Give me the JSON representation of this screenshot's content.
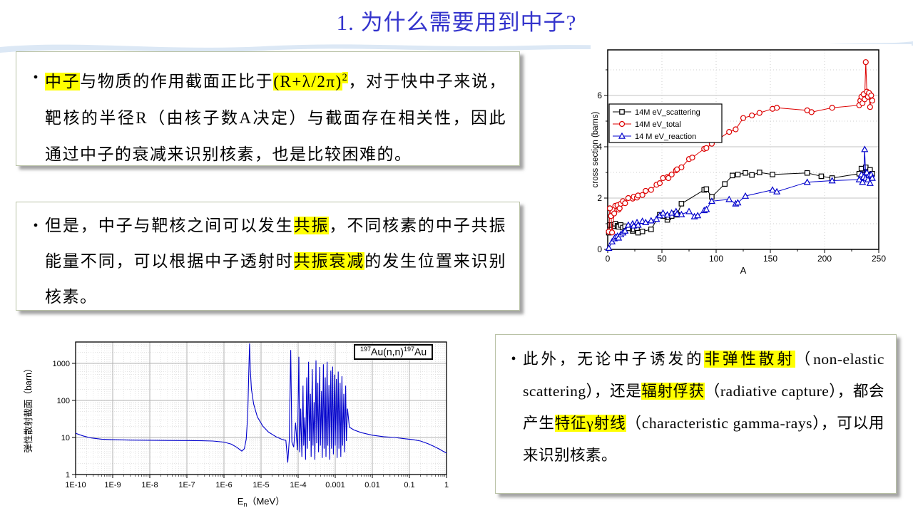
{
  "title": "1. 为什么需要用到中子?",
  "bullet": "•",
  "colors": {
    "title_blue": "#3333cc",
    "highlight_yellow": "#ffff00",
    "series_black": "#000000",
    "series_red": "#dd0000",
    "series_blue": "#0000cc",
    "wave_blue": "#dce8f5"
  },
  "boxes": {
    "box1": {
      "segments": [
        {
          "t": "中子",
          "hl": true
        },
        {
          "t": "与物质的作用截面正比于"
        },
        {
          "t": "(R+λ/2π)",
          "hl": true
        },
        {
          "t": "2",
          "hl": true,
          "sup": true
        },
        {
          "t": "，对于快中子来说，靶核的半径R（由核子数A决定）与截面存在相关性，因此通过中子的衰减来识别核素，也是比较困难的。"
        }
      ]
    },
    "box2": {
      "segments": [
        {
          "t": "但是，中子与靶核之间可以发生"
        },
        {
          "t": "共振",
          "hl": true
        },
        {
          "t": "，不同核素的中子共振能量不同，可以根据中子透射时"
        },
        {
          "t": "共振衰减",
          "hl": true
        },
        {
          "t": "的发生位置来识别核素。"
        }
      ]
    },
    "box3": {
      "segments": [
        {
          "t": "此外，无论中子诱发的"
        },
        {
          "t": "非弹性散射",
          "hl": true
        },
        {
          "t": "（non-elastic scattering），还是"
        },
        {
          "t": "辐射俘获",
          "hl": true
        },
        {
          "t": "（radiative capture），都会产生"
        },
        {
          "t": "特征γ射线",
          "hl": true
        },
        {
          "t": "（characteristic gamma-rays），可以用来识别核素。"
        }
      ]
    }
  },
  "chart_data": [
    {
      "type": "scatter",
      "xlabel": "A",
      "ylabel": "cross section (barns)",
      "xlim": [
        0,
        250
      ],
      "ylim": [
        0,
        7.8
      ],
      "xticks": [
        0,
        50,
        100,
        150,
        200,
        250
      ],
      "yticks": [
        0,
        2,
        4,
        6
      ],
      "grid": "dotted",
      "legend_position": "upper-left-inside",
      "series": [
        {
          "name": "14M eV_scattering",
          "color": "#000000",
          "marker": "square",
          "points": [
            [
              1,
              0.65
            ],
            [
              2,
              0.95
            ],
            [
              4,
              0.95
            ],
            [
              6,
              0.9
            ],
            [
              7,
              1.0
            ],
            [
              9,
              0.92
            ],
            [
              10,
              0.88
            ],
            [
              12,
              0.95
            ],
            [
              14,
              0.85
            ],
            [
              16,
              0.9
            ],
            [
              19,
              0.82
            ],
            [
              23,
              0.72
            ],
            [
              24,
              0.78
            ],
            [
              27,
              0.82
            ],
            [
              28,
              0.65
            ],
            [
              32,
              0.7
            ],
            [
              40,
              0.78
            ],
            [
              48,
              1.35
            ],
            [
              51,
              1.3
            ],
            [
              55,
              1.15
            ],
            [
              56,
              1.25
            ],
            [
              59,
              1.3
            ],
            [
              63,
              1.4
            ],
            [
              64,
              1.35
            ],
            [
              68,
              1.78
            ],
            [
              89,
              2.32
            ],
            [
              91,
              2.35
            ],
            [
              96,
              2.05
            ],
            [
              108,
              2.55
            ],
            [
              115,
              2.88
            ],
            [
              120,
              2.92
            ],
            [
              127,
              2.98
            ],
            [
              133,
              2.9
            ],
            [
              140,
              3.0
            ],
            [
              152,
              2.92
            ],
            [
              184,
              2.98
            ],
            [
              197,
              2.85
            ],
            [
              207,
              2.78
            ],
            [
              232,
              2.95
            ],
            [
              234,
              3.15
            ],
            [
              236,
              2.9
            ],
            [
              238,
              3.2
            ],
            [
              239,
              3.0
            ],
            [
              240,
              2.85
            ],
            [
              242,
              3.1
            ],
            [
              244,
              2.95
            ]
          ]
        },
        {
          "name": "14M eV_total",
          "color": "#dd0000",
          "marker": "circle",
          "points": [
            [
              1,
              0.69
            ],
            [
              2,
              1.6
            ],
            [
              3,
              1.3
            ],
            [
              4,
              0.66
            ],
            [
              6,
              1.4
            ],
            [
              7,
              1.7
            ],
            [
              9,
              1.72
            ],
            [
              10,
              1.55
            ],
            [
              11,
              1.6
            ],
            [
              12,
              1.78
            ],
            [
              14,
              1.88
            ],
            [
              16,
              1.8
            ],
            [
              19,
              2.0
            ],
            [
              23,
              1.98
            ],
            [
              24,
              2.05
            ],
            [
              27,
              2.02
            ],
            [
              28,
              2.1
            ],
            [
              32,
              2.12
            ],
            [
              35,
              2.28
            ],
            [
              40,
              2.32
            ],
            [
              45,
              2.52
            ],
            [
              48,
              2.58
            ],
            [
              51,
              2.78
            ],
            [
              55,
              2.82
            ],
            [
              56,
              2.78
            ],
            [
              59,
              2.92
            ],
            [
              63,
              3.08
            ],
            [
              64,
              3.12
            ],
            [
              68,
              3.2
            ],
            [
              75,
              3.52
            ],
            [
              78,
              3.58
            ],
            [
              89,
              3.92
            ],
            [
              91,
              3.95
            ],
            [
              96,
              4.12
            ],
            [
              112,
              4.58
            ],
            [
              118,
              4.68
            ],
            [
              125,
              5.12
            ],
            [
              133,
              5.22
            ],
            [
              140,
              5.32
            ],
            [
              152,
              5.48
            ],
            [
              156,
              5.52
            ],
            [
              184,
              5.42
            ],
            [
              188,
              5.35
            ],
            [
              207,
              5.52
            ],
            [
              232,
              5.62
            ],
            [
              233,
              5.8
            ],
            [
              234,
              5.95
            ],
            [
              235,
              5.7
            ],
            [
              236,
              6.05
            ],
            [
              237,
              5.85
            ],
            [
              238,
              7.3
            ],
            [
              239,
              6.15
            ],
            [
              240,
              5.95
            ],
            [
              241,
              6.1
            ],
            [
              242,
              5.55
            ],
            [
              243,
              6.0
            ],
            [
              244,
              5.8
            ]
          ]
        },
        {
          "name": "14 M eV_reaction",
          "color": "#0000cc",
          "marker": "triangle",
          "points": [
            [
              1,
              0.05
            ],
            [
              4,
              0.3
            ],
            [
              6,
              0.42
            ],
            [
              7,
              0.48
            ],
            [
              9,
              0.52
            ],
            [
              10,
              0.45
            ],
            [
              12,
              0.58
            ],
            [
              14,
              0.65
            ],
            [
              16,
              0.72
            ],
            [
              19,
              0.95
            ],
            [
              23,
              1.0
            ],
            [
              24,
              0.92
            ],
            [
              27,
              1.05
            ],
            [
              28,
              0.95
            ],
            [
              32,
              1.1
            ],
            [
              35,
              1.05
            ],
            [
              40,
              1.12
            ],
            [
              45,
              1.18
            ],
            [
              48,
              1.32
            ],
            [
              51,
              1.42
            ],
            [
              55,
              1.35
            ],
            [
              59,
              1.42
            ],
            [
              63,
              1.48
            ],
            [
              64,
              1.38
            ],
            [
              68,
              1.36
            ],
            [
              75,
              1.48
            ],
            [
              80,
              1.28
            ],
            [
              83,
              1.32
            ],
            [
              89,
              1.52
            ],
            [
              91,
              1.56
            ],
            [
              96,
              1.88
            ],
            [
              112,
              1.95
            ],
            [
              118,
              1.78
            ],
            [
              120,
              1.82
            ],
            [
              127,
              2.08
            ],
            [
              152,
              2.32
            ],
            [
              156,
              2.25
            ],
            [
              184,
              2.62
            ],
            [
              207,
              2.68
            ],
            [
              232,
              2.72
            ],
            [
              234,
              2.92
            ],
            [
              235,
              2.62
            ],
            [
              236,
              2.82
            ],
            [
              237,
              3.9
            ],
            [
              238,
              2.78
            ],
            [
              239,
              3.0
            ],
            [
              240,
              2.72
            ],
            [
              241,
              2.88
            ],
            [
              242,
              2.58
            ],
            [
              243,
              2.92
            ],
            [
              244,
              2.78
            ]
          ]
        }
      ]
    },
    {
      "type": "line",
      "title_box_segments": [
        {
          "t": "197",
          "sup": true
        },
        {
          "t": "Au(n,n)"
        },
        {
          "t": "197",
          "sup": true
        },
        {
          "t": "Au"
        }
      ],
      "xlabel_segments": [
        {
          "t": "E"
        },
        {
          "t": "n",
          "sub": true
        },
        {
          "t": "（MeV）"
        }
      ],
      "ylabel": "弹性散射截面（barn）",
      "xscale": "log",
      "yscale": "log",
      "xlim_log": [
        -10,
        0
      ],
      "ylim": [
        1,
        3500
      ],
      "xtick_labels": [
        "1E-10",
        "1E-9",
        "1E-8",
        "1E-7",
        "1E-6",
        "1E-5",
        "1E-4",
        "0.001",
        "0.01",
        "0.1",
        "1"
      ],
      "ytick_labels": [
        "1",
        "10",
        "100",
        "1000"
      ],
      "color": "#0000cc",
      "grid": "log-graph-paper",
      "points": [
        [
          -10,
          13
        ],
        [
          -9.8,
          11
        ],
        [
          -9.6,
          9.8
        ],
        [
          -9.3,
          9.0
        ],
        [
          -9,
          8.7
        ],
        [
          -8.5,
          8.5
        ],
        [
          -8,
          8.4
        ],
        [
          -7.5,
          8.3
        ],
        [
          -7,
          8.25
        ],
        [
          -6.6,
          8.15
        ],
        [
          -6.3,
          8.0
        ],
        [
          -6.0,
          7.5
        ],
        [
          -5.8,
          6.6
        ],
        [
          -5.65,
          5.4
        ],
        [
          -5.52,
          4.3
        ],
        [
          -5.45,
          5.0
        ],
        [
          -5.4,
          9
        ],
        [
          -5.36,
          40
        ],
        [
          -5.33,
          600
        ],
        [
          -5.31,
          3500
        ],
        [
          -5.29,
          700
        ],
        [
          -5.26,
          200
        ],
        [
          -5.2,
          80
        ],
        [
          -5.1,
          36
        ],
        [
          -4.95,
          20
        ],
        [
          -4.8,
          14
        ],
        [
          -4.6,
          10.5
        ],
        [
          -4.45,
          9
        ],
        [
          -4.33,
          8.3
        ],
        [
          -4.28,
          2.1
        ],
        [
          -4.24,
          8.2
        ],
        [
          -4.2,
          2300
        ],
        [
          -4.17,
          7.5
        ],
        [
          -4.12,
          5.5
        ],
        [
          -4.07,
          25
        ],
        [
          -4.02,
          4.5
        ],
        [
          -3.98,
          1500
        ],
        [
          -3.96,
          4
        ],
        [
          -3.93,
          60
        ],
        [
          -3.9,
          3
        ],
        [
          -3.87,
          250
        ],
        [
          -3.85,
          6
        ],
        [
          -3.82,
          35
        ],
        [
          -3.8,
          2.5
        ],
        [
          -3.77,
          420
        ],
        [
          -3.75,
          5
        ],
        [
          -3.72,
          1100
        ],
        [
          -3.7,
          8
        ],
        [
          -3.67,
          150
        ],
        [
          -3.65,
          3
        ],
        [
          -3.62,
          700
        ],
        [
          -3.6,
          6
        ],
        [
          -3.57,
          90
        ],
        [
          -3.55,
          2.5
        ],
        [
          -3.52,
          1200
        ],
        [
          -3.5,
          7
        ],
        [
          -3.47,
          300
        ],
        [
          -3.45,
          4
        ],
        [
          -3.42,
          800
        ],
        [
          -3.4,
          6
        ],
        [
          -3.37,
          180
        ],
        [
          -3.35,
          2.8
        ],
        [
          -3.32,
          950
        ],
        [
          -3.3,
          5
        ],
        [
          -3.27,
          420
        ],
        [
          -3.25,
          3
        ],
        [
          -3.22,
          1100
        ],
        [
          -3.2,
          6
        ],
        [
          -3.17,
          260
        ],
        [
          -3.15,
          2.5
        ],
        [
          -3.12,
          640
        ],
        [
          -3.1,
          5
        ],
        [
          -3.07,
          820
        ],
        [
          -3.05,
          3.5
        ],
        [
          -3.02,
          500
        ],
        [
          -3.0,
          6
        ],
        [
          -2.97,
          380
        ],
        [
          -2.95,
          2.8
        ],
        [
          -2.92,
          600
        ],
        [
          -2.9,
          5
        ],
        [
          -2.87,
          300
        ],
        [
          -2.85,
          3
        ],
        [
          -2.82,
          450
        ],
        [
          -2.8,
          6
        ],
        [
          -2.77,
          150
        ],
        [
          -2.75,
          4
        ],
        [
          -2.72,
          250
        ],
        [
          -2.7,
          8
        ],
        [
          -2.67,
          60
        ],
        [
          -2.62,
          19
        ],
        [
          -2.5,
          16
        ],
        [
          -2.3,
          13.5
        ],
        [
          -2.0,
          11.5
        ],
        [
          -1.7,
          10.5
        ],
        [
          -1.4,
          10
        ],
        [
          -1.1,
          9.2
        ],
        [
          -0.9,
          8.7
        ],
        [
          -0.7,
          8.0
        ],
        [
          -0.5,
          6.8
        ],
        [
          -0.35,
          5.8
        ],
        [
          -0.2,
          4.9
        ],
        [
          -0.1,
          4.3
        ],
        [
          0,
          3.8
        ]
      ]
    }
  ]
}
